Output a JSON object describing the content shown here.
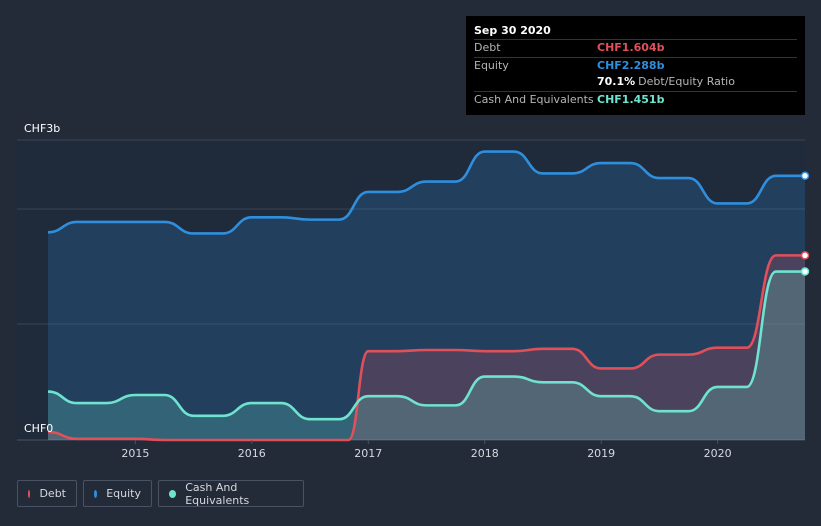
{
  "tooltip": {
    "date": "Sep 30 2020",
    "debt_label": "Debt",
    "debt_value": "CHF1.604b",
    "equity_label": "Equity",
    "equity_value": "CHF2.288b",
    "ratio_value": "70.1%",
    "ratio_label": "Debt/Equity Ratio",
    "cash_label": "Cash And Equivalents",
    "cash_value": "CHF1.451b"
  },
  "legend": {
    "debt": "Debt",
    "equity": "Equity",
    "cash": "Cash And Equivalents"
  },
  "colors": {
    "debt": "#e0505b",
    "equity": "#2f8fdd",
    "cash": "#6fe3cf",
    "background": "#232b39"
  },
  "chart_data": {
    "type": "area",
    "ylabel_top": "CHF3b",
    "ylabel_bottom": "CHF0",
    "ylim": [
      0,
      2.6
    ],
    "xlim": [
      2014.25,
      2020.75
    ],
    "x_ticks": [
      "2015",
      "2016",
      "2017",
      "2018",
      "2019",
      "2020"
    ],
    "series": [
      {
        "name": "Debt",
        "key": "debt",
        "points": [
          [
            2014.25,
            0.07
          ],
          [
            2014.5,
            0.01
          ],
          [
            2014.75,
            0.01
          ],
          [
            2015.0,
            0.01
          ],
          [
            2015.25,
            0.0
          ],
          [
            2015.5,
            0.0
          ],
          [
            2015.75,
            0.0
          ],
          [
            2016.0,
            0.0
          ],
          [
            2016.25,
            0.0
          ],
          [
            2016.5,
            0.0
          ],
          [
            2016.75,
            0.0
          ],
          [
            2016.83,
            0.0
          ],
          [
            2017.0,
            0.77
          ],
          [
            2017.25,
            0.77
          ],
          [
            2017.5,
            0.78
          ],
          [
            2017.75,
            0.78
          ],
          [
            2018.0,
            0.77
          ],
          [
            2018.25,
            0.77
          ],
          [
            2018.5,
            0.79
          ],
          [
            2018.75,
            0.79
          ],
          [
            2019.0,
            0.62
          ],
          [
            2019.25,
            0.62
          ],
          [
            2019.5,
            0.74
          ],
          [
            2019.75,
            0.74
          ],
          [
            2020.0,
            0.8
          ],
          [
            2020.25,
            0.8
          ],
          [
            2020.5,
            1.6
          ],
          [
            2020.75,
            1.6
          ]
        ]
      },
      {
        "name": "Equity",
        "key": "equity",
        "points": [
          [
            2014.25,
            1.8
          ],
          [
            2014.5,
            1.89
          ],
          [
            2014.75,
            1.89
          ],
          [
            2015.0,
            1.89
          ],
          [
            2015.25,
            1.89
          ],
          [
            2015.5,
            1.79
          ],
          [
            2015.75,
            1.79
          ],
          [
            2016.0,
            1.93
          ],
          [
            2016.25,
            1.93
          ],
          [
            2016.5,
            1.91
          ],
          [
            2016.75,
            1.91
          ],
          [
            2017.0,
            2.15
          ],
          [
            2017.25,
            2.15
          ],
          [
            2017.5,
            2.24
          ],
          [
            2017.75,
            2.24
          ],
          [
            2018.0,
            2.5
          ],
          [
            2018.25,
            2.5
          ],
          [
            2018.5,
            2.31
          ],
          [
            2018.75,
            2.31
          ],
          [
            2019.0,
            2.4
          ],
          [
            2019.25,
            2.4
          ],
          [
            2019.5,
            2.27
          ],
          [
            2019.75,
            2.27
          ],
          [
            2020.0,
            2.05
          ],
          [
            2020.25,
            2.05
          ],
          [
            2020.5,
            2.29
          ],
          [
            2020.75,
            2.29
          ]
        ]
      },
      {
        "name": "Cash And Equivalents",
        "key": "cash",
        "points": [
          [
            2014.25,
            0.42
          ],
          [
            2014.5,
            0.32
          ],
          [
            2014.75,
            0.32
          ],
          [
            2015.0,
            0.39
          ],
          [
            2015.25,
            0.39
          ],
          [
            2015.5,
            0.21
          ],
          [
            2015.75,
            0.21
          ],
          [
            2016.0,
            0.32
          ],
          [
            2016.25,
            0.32
          ],
          [
            2016.5,
            0.18
          ],
          [
            2016.75,
            0.18
          ],
          [
            2017.0,
            0.38
          ],
          [
            2017.25,
            0.38
          ],
          [
            2017.5,
            0.3
          ],
          [
            2017.75,
            0.3
          ],
          [
            2018.0,
            0.55
          ],
          [
            2018.25,
            0.55
          ],
          [
            2018.5,
            0.5
          ],
          [
            2018.75,
            0.5
          ],
          [
            2019.0,
            0.38
          ],
          [
            2019.25,
            0.38
          ],
          [
            2019.5,
            0.25
          ],
          [
            2019.75,
            0.25
          ],
          [
            2020.0,
            0.46
          ],
          [
            2020.25,
            0.46
          ],
          [
            2020.5,
            1.46
          ],
          [
            2020.75,
            1.46
          ]
        ]
      }
    ]
  }
}
